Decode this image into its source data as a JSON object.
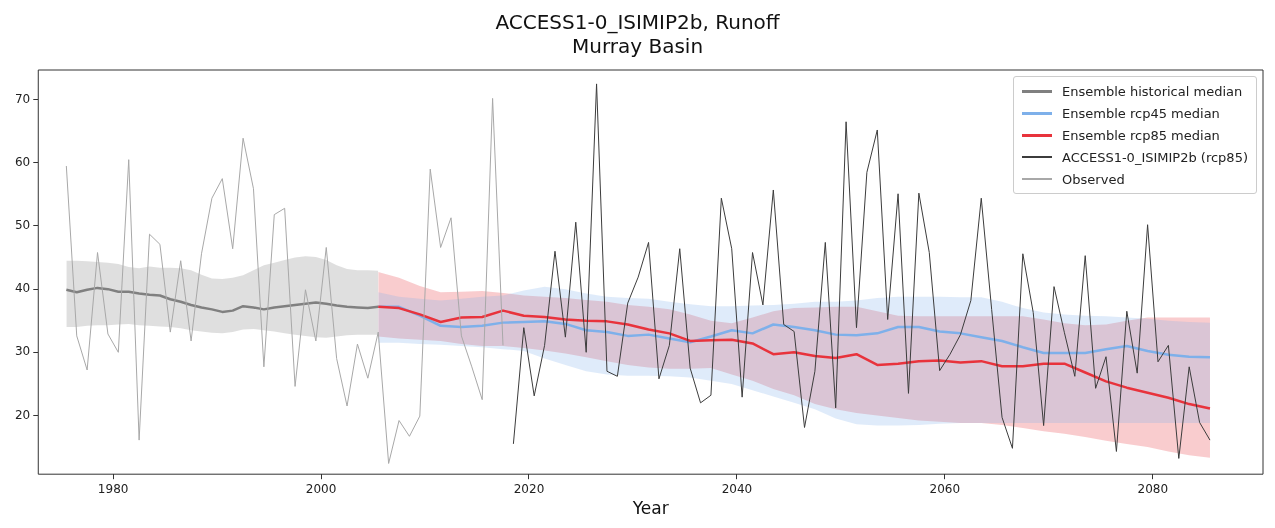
{
  "chart_data": {
    "type": "line",
    "title": "ACCESS1-0_ISIMIP2b, Runoff",
    "subtitle": "Murray Basin",
    "xlabel": "Year",
    "xlim": [
      1972.8,
      2090.6
    ],
    "xticks": [
      1980,
      2000,
      2020,
      2040,
      2060,
      2080
    ],
    "ylim": [
      10.7,
      74.7
    ],
    "yticks": [
      20,
      30,
      40,
      50,
      60,
      70
    ],
    "legend": "top right",
    "series": [
      {
        "name": "Ensemble historical median",
        "color": "#808080",
        "x": [
          1975.5,
          1976.5,
          1977.5,
          1978.5,
          1979.5,
          1980.5,
          1981.5,
          1982.5,
          1983.5,
          1984.5,
          1985.5,
          1986.5,
          1987.5,
          1988.5,
          1989.5,
          1990.5,
          1991.5,
          1992.5,
          1993.5,
          1994.5,
          1995.5,
          1996.5,
          1997.5,
          1998.5,
          1999.5,
          2000.5,
          2001.5,
          2002.5,
          2003.5,
          2004.5,
          2005.5
        ],
        "values": [
          39.9,
          39.5,
          39.9,
          40.2,
          40.0,
          39.6,
          39.6,
          39.3,
          39.1,
          39.0,
          38.4,
          38.0,
          37.5,
          37.1,
          36.8,
          36.4,
          36.6,
          37.3,
          37.1,
          36.8,
          37.1,
          37.3,
          37.5,
          37.7,
          37.9,
          37.7,
          37.4,
          37.2,
          37.1,
          37.0,
          37.2
        ],
        "upper": [
          44.5,
          44.5,
          44.4,
          44.3,
          44.2,
          44.0,
          43.5,
          43.3,
          43.6,
          43.4,
          43.4,
          43.3,
          43.0,
          42.3,
          41.7,
          41.6,
          41.8,
          42.2,
          43.0,
          43.8,
          44.2,
          44.6,
          45.0,
          45.2,
          45.1,
          44.6,
          43.8,
          43.2,
          43.0,
          43.0,
          42.9
        ],
        "lower": [
          34.0,
          34.0,
          34.2,
          34.3,
          34.3,
          34.4,
          34.5,
          34.3,
          34.2,
          34.1,
          34.0,
          33.8,
          33.5,
          33.3,
          33.1,
          33.0,
          33.2,
          33.6,
          33.7,
          33.5,
          33.3,
          33.0,
          32.8,
          32.6,
          32.4,
          32.3,
          32.5,
          32.7,
          32.8,
          32.8,
          32.8
        ]
      },
      {
        "name": "Ensemble rcp45 median",
        "color": "#7eb0ea",
        "x": [
          2005.5,
          2007.5,
          2009.5,
          2011.5,
          2013.5,
          2015.5,
          2017.5,
          2019.5,
          2021.5,
          2023.5,
          2025.5,
          2027.5,
          2029.5,
          2031.5,
          2033.5,
          2035.5,
          2037.5,
          2039.5,
          2041.5,
          2043.5,
          2045.5,
          2047.5,
          2049.5,
          2051.5,
          2053.5,
          2055.5,
          2057.5,
          2059.5,
          2061.5,
          2063.5,
          2065.5,
          2067.5,
          2069.5,
          2071.5,
          2073.5,
          2075.5,
          2077.5,
          2079.5,
          2081.5,
          2083.5,
          2085.5
        ],
        "values": [
          37.2,
          37.2,
          35.8,
          34.2,
          34.0,
          34.2,
          34.7,
          34.8,
          34.9,
          34.5,
          33.5,
          33.2,
          32.6,
          32.8,
          32.2,
          31.6,
          32.5,
          33.5,
          33.0,
          34.4,
          34.0,
          33.5,
          32.8,
          32.7,
          33.0,
          34.0,
          34.0,
          33.3,
          33.0,
          32.4,
          31.8,
          30.8,
          29.9,
          29.9,
          29.9,
          30.5,
          31.0,
          30.2,
          29.6,
          29.3,
          29.2
        ],
        "upper": [
          39.5,
          38.8,
          38.5,
          38.2,
          38.5,
          38.8,
          39.0,
          39.8,
          40.4,
          40.0,
          39.3,
          38.8,
          38.6,
          38.5,
          38.0,
          37.6,
          37.3,
          37.3,
          37.4,
          37.5,
          37.7,
          38.0,
          38.0,
          38.2,
          38.6,
          38.8,
          38.8,
          38.8,
          38.7,
          38.7,
          38.0,
          37.0,
          36.3,
          36.0,
          35.8,
          35.7,
          35.5,
          35.3,
          35.0,
          34.8,
          34.7
        ],
        "lower": [
          31.5,
          31.5,
          31.3,
          31.2,
          31.0,
          30.8,
          30.5,
          30.2,
          29.0,
          28.0,
          27.0,
          26.5,
          26.3,
          26.3,
          26.2,
          26.0,
          25.5,
          25.0,
          24.0,
          23.0,
          22.0,
          21.0,
          19.5,
          18.6,
          18.4,
          18.4,
          18.5,
          18.7,
          18.8,
          18.8,
          18.8,
          18.8,
          18.8,
          18.8,
          18.8,
          18.8,
          18.8,
          18.8,
          18.8,
          18.8,
          18.8
        ]
      },
      {
        "name": "Ensemble rcp85 median",
        "color": "#e8333c",
        "x": [
          2005.5,
          2007.5,
          2009.5,
          2011.5,
          2013.5,
          2015.5,
          2017.5,
          2019.5,
          2021.5,
          2023.5,
          2025.5,
          2027.5,
          2029.5,
          2031.5,
          2033.5,
          2035.5,
          2037.5,
          2039.5,
          2041.5,
          2043.5,
          2045.5,
          2047.5,
          2049.5,
          2051.5,
          2053.5,
          2055.5,
          2057.5,
          2059.5,
          2061.5,
          2063.5,
          2065.5,
          2067.5,
          2069.5,
          2071.5,
          2073.5,
          2075.5,
          2077.5,
          2079.5,
          2081.5,
          2083.5,
          2085.5
        ],
        "values": [
          37.2,
          37.0,
          36.0,
          34.8,
          35.5,
          35.6,
          36.6,
          35.8,
          35.6,
          35.2,
          35.0,
          34.9,
          34.4,
          33.6,
          33.0,
          31.8,
          31.9,
          32.0,
          31.4,
          29.7,
          30.0,
          29.4,
          29.1,
          29.7,
          28.0,
          28.2,
          28.6,
          28.7,
          28.4,
          28.6,
          27.8,
          27.8,
          28.2,
          28.2,
          26.8,
          25.4,
          24.4,
          23.6,
          22.8,
          21.8,
          21.1
        ],
        "upper": [
          42.7,
          41.8,
          40.5,
          39.5,
          39.6,
          39.7,
          39.4,
          39.0,
          38.8,
          38.6,
          38.3,
          38.0,
          37.5,
          37.2,
          36.8,
          36.0,
          35.0,
          34.6,
          35.5,
          36.5,
          37.0,
          37.1,
          37.2,
          37.2,
          36.5,
          35.8,
          35.7,
          35.7,
          35.7,
          35.7,
          35.7,
          35.7,
          35.2,
          34.6,
          34.3,
          34.4,
          35.0,
          35.5,
          35.5,
          35.5,
          35.5
        ],
        "lower": [
          32.5,
          32.2,
          32.0,
          31.8,
          31.3,
          31.0,
          31.0,
          30.7,
          30.3,
          29.8,
          29.2,
          28.6,
          28.0,
          27.6,
          27.4,
          27.4,
          27.5,
          26.5,
          25.5,
          24.2,
          23.2,
          21.8,
          21.0,
          20.4,
          20.0,
          19.6,
          19.2,
          19.0,
          18.8,
          18.8,
          18.5,
          18.0,
          17.5,
          17.1,
          16.6,
          16.0,
          15.5,
          15.0,
          14.3,
          13.7,
          13.3
        ]
      },
      {
        "name": "ACCESS1-0_ISIMIP2b (rcp85)",
        "color": "#3c3c3c",
        "x": [
          2018.5,
          2019.5,
          2020.5,
          2021.5,
          2022.5,
          2023.5,
          2024.5,
          2025.5,
          2026.5,
          2027.5,
          2028.5,
          2029.5,
          2030.5,
          2031.5,
          2032.5,
          2033.5,
          2034.5,
          2035.5,
          2036.5,
          2037.5,
          2038.5,
          2039.5,
          2040.5,
          2041.5,
          2042.5,
          2043.5,
          2044.5,
          2045.5,
          2046.5,
          2047.5,
          2048.5,
          2049.5,
          2050.5,
          2051.5,
          2052.5,
          2053.5,
          2054.5,
          2055.5,
          2056.5,
          2057.5,
          2058.5,
          2059.5,
          2060.5,
          2061.5,
          2062.5,
          2063.5,
          2064.5,
          2065.5,
          2066.5,
          2067.5,
          2068.5,
          2069.5,
          2070.5,
          2071.5,
          2072.5,
          2073.5,
          2074.5,
          2075.5,
          2076.5,
          2077.5,
          2078.5,
          2079.5,
          2080.5,
          2081.5,
          2082.5,
          2083.5,
          2084.5,
          2085.5
        ],
        "values": [
          15.5,
          33.9,
          23.1,
          31.1,
          46.0,
          32.4,
          50.6,
          30.0,
          72.5,
          27.0,
          26.2,
          37.8,
          41.9,
          47.4,
          25.8,
          31.1,
          46.4,
          27.5,
          22.0,
          23.2,
          54.4,
          46.4,
          22.9,
          45.8,
          37.5,
          55.7,
          34.4,
          33.3,
          18.1,
          27.0,
          47.4,
          21.2,
          66.5,
          33.9,
          58.5,
          65.2,
          35.2,
          55.1,
          23.5,
          55.2,
          45.8,
          27.1,
          29.7,
          32.8,
          38.2,
          54.4,
          36.8,
          19.7,
          14.8,
          45.6,
          36.3,
          18.4,
          40.4,
          33.1,
          26.2,
          45.3,
          24.3,
          29.3,
          14.3,
          36.5,
          26.7,
          50.2,
          28.5,
          31.1,
          13.2,
          27.7,
          18.9,
          16.1
        ]
      },
      {
        "name": "Observed",
        "color": "#a8a8a8",
        "x": [
          1975.5,
          1976.5,
          1977.5,
          1978.5,
          1979.5,
          1980.5,
          1981.5,
          1982.5,
          1983.5,
          1984.5,
          1985.5,
          1986.5,
          1987.5,
          1988.5,
          1989.5,
          1990.5,
          1991.5,
          1992.5,
          1993.5,
          1994.5,
          1995.5,
          1996.5,
          1997.5,
          1998.5,
          1999.5,
          2000.5,
          2001.5,
          2002.5,
          2003.5,
          2004.5,
          2005.5,
          2006.5,
          2007.5,
          2008.5,
          2009.5,
          2010.5,
          2011.5,
          2012.5,
          2013.5,
          2014.5,
          2015.5,
          2016.5,
          2017.5
        ],
        "values": [
          59.5,
          32.6,
          27.2,
          45.8,
          32.9,
          30.0,
          60.5,
          16.1,
          48.7,
          47.1,
          33.2,
          44.5,
          31.8,
          45.6,
          54.4,
          57.5,
          46.4,
          63.9,
          55.9,
          27.7,
          51.8,
          52.8,
          24.6,
          39.9,
          31.8,
          46.6,
          29.0,
          21.5,
          31.3,
          25.9,
          33.2,
          12.4,
          19.2,
          16.7,
          19.9,
          59.0,
          46.6,
          51.3,
          32.6,
          27.7,
          22.5,
          70.2,
          31.1
        ]
      }
    ]
  }
}
